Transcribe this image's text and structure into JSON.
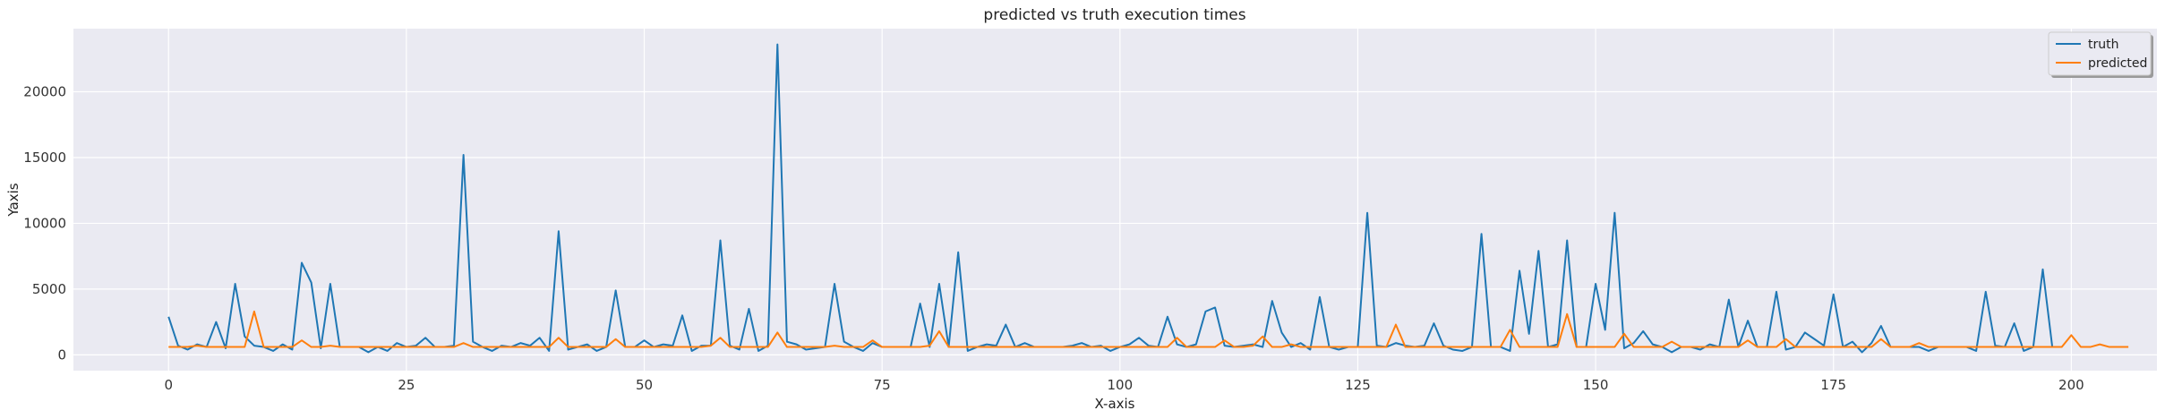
{
  "chart_data": {
    "type": "line",
    "title": "predicted vs truth execution times",
    "xlabel": "X-axis",
    "ylabel": "Yaxis",
    "xlim": [
      -10,
      209
    ],
    "ylim": [
      -1200,
      24800
    ],
    "xticks": [
      0,
      25,
      50,
      75,
      100,
      125,
      150,
      175,
      200
    ],
    "yticks": [
      0,
      5000,
      10000,
      15000,
      20000
    ],
    "grid": true,
    "legend_position": "top-right",
    "series": [
      {
        "name": "truth",
        "color": "#1f77b4",
        "values": [
          2900,
          700,
          400,
          800,
          600,
          2500,
          500,
          5400,
          1400,
          700,
          600,
          300,
          800,
          400,
          7000,
          5500,
          500,
          5400,
          600,
          600,
          600,
          200,
          600,
          300,
          900,
          600,
          700,
          1300,
          600,
          600,
          700,
          15200,
          1000,
          600,
          300,
          700,
          600,
          900,
          700,
          1300,
          300,
          9400,
          400,
          600,
          800,
          300,
          600,
          4900,
          600,
          600,
          1100,
          600,
          800,
          700,
          3000,
          300,
          700,
          700,
          8700,
          700,
          400,
          3500,
          300,
          700,
          23600,
          1000,
          800,
          400,
          500,
          600,
          5400,
          1000,
          600,
          300,
          900,
          600,
          600,
          600,
          600,
          3900,
          600,
          5400,
          600,
          7800,
          300,
          600,
          800,
          700,
          2300,
          600,
          900,
          600,
          600,
          600,
          600,
          700,
          900,
          600,
          700,
          300,
          600,
          800,
          1300,
          700,
          600,
          2900,
          800,
          600,
          800,
          3300,
          3600,
          700,
          600,
          700,
          800,
          600,
          4100,
          1700,
          600,
          900,
          400,
          4400,
          600,
          400,
          600,
          600,
          10800,
          700,
          600,
          900,
          700,
          600,
          700,
          2400,
          700,
          400,
          300,
          600,
          9200,
          600,
          600,
          300,
          6400,
          1600,
          7900,
          600,
          800,
          8700,
          600,
          600,
          5400,
          1900,
          10800,
          500,
          900,
          1800,
          800,
          600,
          200,
          600,
          600,
          400,
          800,
          600,
          4200,
          600,
          2600,
          600,
          600,
          4800,
          400,
          600,
          1700,
          1200,
          700,
          4600,
          600,
          1000,
          200,
          900,
          2200,
          600,
          600,
          600,
          600,
          300,
          600,
          600,
          600,
          600,
          300,
          4800,
          700,
          600,
          2400,
          300,
          600,
          6500,
          600,
          600
        ]
      },
      {
        "name": "predicted",
        "color": "#ff7f0e",
        "values": [
          600,
          600,
          600,
          700,
          600,
          600,
          600,
          600,
          600,
          3300,
          600,
          600,
          600,
          600,
          1100,
          600,
          600,
          700,
          600,
          600,
          600,
          600,
          600,
          600,
          600,
          600,
          600,
          600,
          600,
          600,
          600,
          900,
          600,
          600,
          600,
          600,
          600,
          600,
          600,
          600,
          600,
          1300,
          600,
          600,
          600,
          600,
          600,
          1200,
          600,
          600,
          600,
          600,
          600,
          600,
          600,
          600,
          600,
          700,
          1300,
          600,
          600,
          600,
          600,
          600,
          1700,
          600,
          600,
          600,
          600,
          600,
          700,
          600,
          600,
          600,
          1100,
          600,
          600,
          600,
          600,
          600,
          700,
          1800,
          600,
          600,
          600,
          600,
          600,
          600,
          600,
          600,
          600,
          600,
          600,
          600,
          600,
          600,
          600,
          600,
          600,
          600,
          600,
          600,
          600,
          600,
          600,
          600,
          1300,
          600,
          600,
          600,
          600,
          1100,
          600,
          600,
          700,
          1400,
          600,
          600,
          800,
          600,
          600,
          600,
          600,
          600,
          600,
          600,
          600,
          600,
          600,
          2300,
          600,
          600,
          600,
          600,
          600,
          600,
          600,
          600,
          600,
          600,
          600,
          1900,
          600,
          600,
          600,
          600,
          600,
          3100,
          600,
          600,
          600,
          600,
          600,
          1600,
          600,
          600,
          600,
          600,
          1000,
          600,
          600,
          600,
          600,
          600,
          600,
          600,
          1100,
          600,
          600,
          600,
          1200,
          600,
          600,
          600,
          600,
          600,
          600,
          600,
          600,
          600,
          1200,
          600,
          600,
          600,
          900,
          600,
          600,
          600,
          600,
          600,
          600,
          600,
          600,
          600,
          600,
          600,
          600,
          600,
          600,
          600,
          1500,
          600,
          600,
          800,
          600,
          600,
          600
        ]
      }
    ]
  }
}
